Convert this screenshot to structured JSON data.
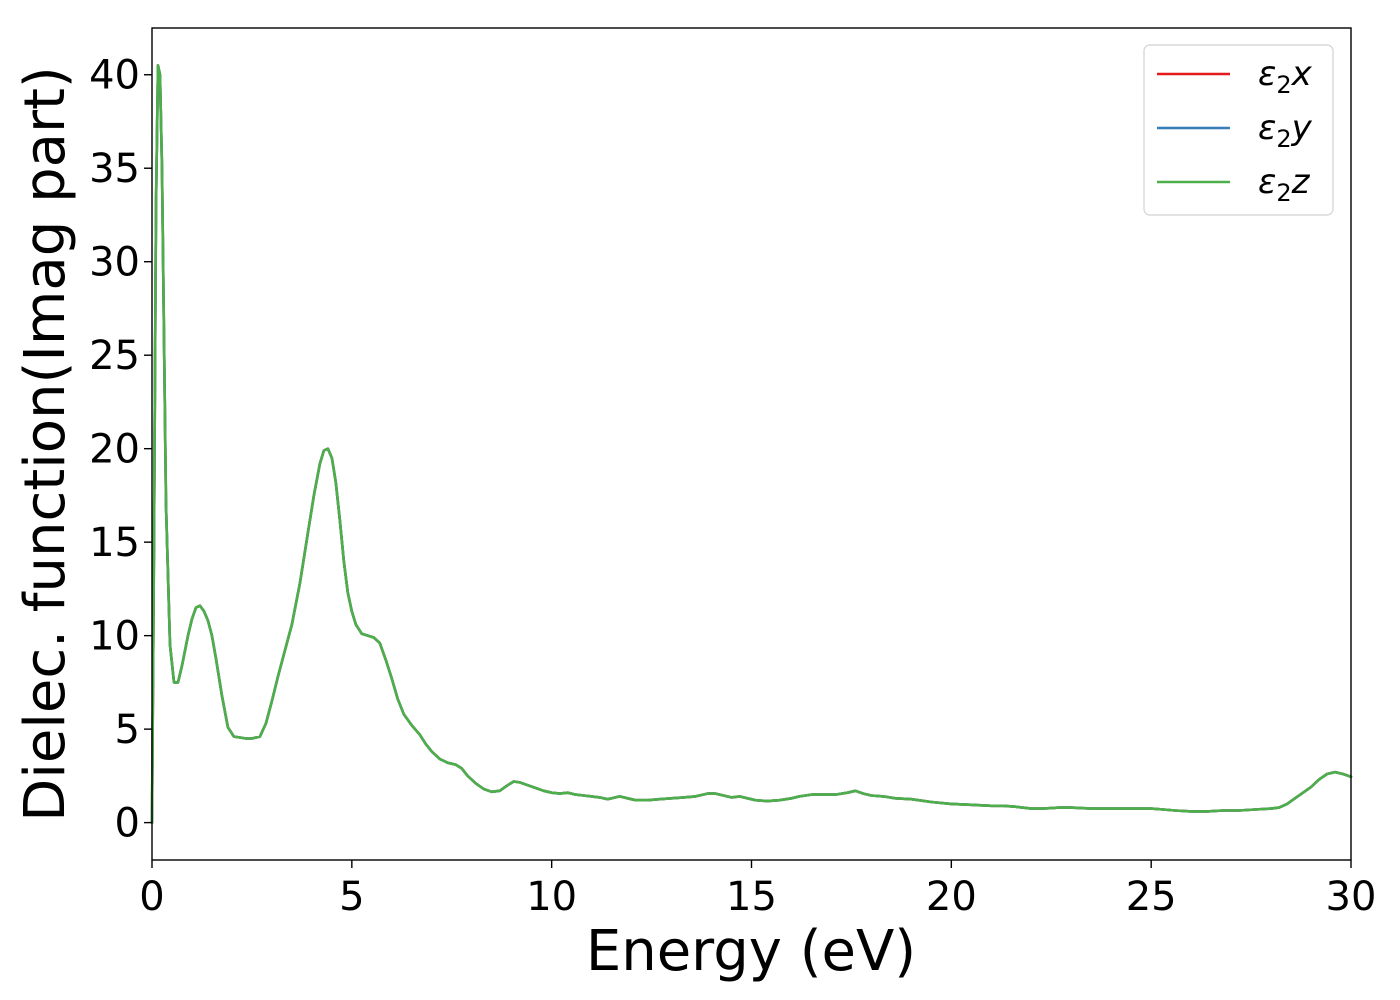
{
  "chart_data": {
    "type": "line",
    "title": "",
    "xlabel": "Energy (eV)",
    "ylabel": "Dielec. function(Imag part)",
    "xlim": [
      0,
      30
    ],
    "ylim": [
      -2,
      42.5
    ],
    "xticks": [
      0,
      5,
      10,
      15,
      20,
      25,
      30
    ],
    "yticks": [
      0,
      5,
      10,
      15,
      20,
      25,
      30,
      35,
      40
    ],
    "grid": false,
    "legend_position": "top-right",
    "series": [
      {
        "name": "ε₂x",
        "legend_base": "ε",
        "legend_sub": "2",
        "legend_axis": "x",
        "color": "#e41a1c",
        "x": [
          0,
          0.05,
          0.1,
          0.15,
          0.2,
          0.25,
          0.3,
          0.35,
          0.45,
          0.55,
          0.65,
          0.75,
          0.9,
          1.0,
          1.1,
          1.2,
          1.3,
          1.4,
          1.5,
          1.6,
          1.75,
          1.9,
          2.05,
          2.2,
          2.35,
          2.5,
          2.7,
          2.85,
          3.0,
          3.15,
          3.3,
          3.5,
          3.7,
          3.9,
          4.05,
          4.2,
          4.3,
          4.4,
          4.5,
          4.6,
          4.7,
          4.8,
          4.9,
          5.0,
          5.1,
          5.25,
          5.4,
          5.55,
          5.7,
          5.85,
          6.0,
          6.15,
          6.3,
          6.5,
          6.7,
          6.85,
          7.0,
          7.2,
          7.4,
          7.6,
          7.75,
          7.9,
          8.1,
          8.3,
          8.5,
          8.7,
          8.9,
          9.05,
          9.2,
          9.4,
          9.6,
          9.8,
          10.0,
          10.2,
          10.4,
          10.6,
          10.8,
          11.0,
          11.2,
          11.4,
          11.6,
          11.7,
          11.9,
          12.1,
          12.4,
          12.7,
          13.0,
          13.3,
          13.6,
          13.9,
          14.1,
          14.3,
          14.5,
          14.7,
          14.9,
          15.1,
          15.4,
          15.7,
          16.0,
          16.2,
          16.5,
          16.8,
          17.1,
          17.4,
          17.6,
          17.8,
          18.0,
          18.3,
          18.6,
          19.0,
          19.5,
          20.0,
          20.5,
          21.0,
          21.3,
          21.6,
          22.0,
          22.3,
          22.7,
          23.0,
          23.5,
          24.0,
          24.5,
          25.0,
          25.3,
          25.6,
          26.0,
          26.4,
          26.8,
          27.2,
          27.6,
          28.0,
          28.2,
          28.4,
          28.6,
          28.8,
          29.0,
          29.2,
          29.4,
          29.6,
          29.8,
          30.0
        ],
        "y": [
          0,
          15,
          33,
          40.5,
          40,
          35,
          26,
          17,
          9.5,
          7.5,
          7.5,
          8.4,
          10,
          10.9,
          11.5,
          11.6,
          11.3,
          10.8,
          10.0,
          8.8,
          6.8,
          5.1,
          4.6,
          4.55,
          4.5,
          4.5,
          4.6,
          5.3,
          6.5,
          7.8,
          9.0,
          10.6,
          12.8,
          15.5,
          17.5,
          19.2,
          19.9,
          20.0,
          19.5,
          18.2,
          16.2,
          14.0,
          12.3,
          11.3,
          10.6,
          10.1,
          10.0,
          9.9,
          9.6,
          8.7,
          7.7,
          6.6,
          5.8,
          5.2,
          4.7,
          4.2,
          3.8,
          3.4,
          3.2,
          3.1,
          2.9,
          2.5,
          2.1,
          1.8,
          1.65,
          1.7,
          2.0,
          2.2,
          2.15,
          2.0,
          1.85,
          1.7,
          1.6,
          1.55,
          1.6,
          1.5,
          1.45,
          1.4,
          1.35,
          1.25,
          1.35,
          1.4,
          1.3,
          1.2,
          1.2,
          1.25,
          1.3,
          1.35,
          1.4,
          1.55,
          1.55,
          1.45,
          1.35,
          1.4,
          1.3,
          1.2,
          1.15,
          1.2,
          1.3,
          1.4,
          1.5,
          1.5,
          1.5,
          1.6,
          1.7,
          1.55,
          1.45,
          1.4,
          1.3,
          1.25,
          1.1,
          1.0,
          0.95,
          0.9,
          0.9,
          0.85,
          0.75,
          0.75,
          0.8,
          0.8,
          0.75,
          0.75,
          0.75,
          0.75,
          0.7,
          0.65,
          0.6,
          0.6,
          0.65,
          0.65,
          0.7,
          0.75,
          0.8,
          1.0,
          1.3,
          1.6,
          1.9,
          2.3,
          2.6,
          2.7,
          2.6,
          2.45
        ]
      },
      {
        "name": "ε₂y",
        "legend_base": "ε",
        "legend_sub": "2",
        "legend_axis": "y",
        "color": "#377eb8",
        "same_as": 0
      },
      {
        "name": "ε₂z",
        "legend_base": "ε",
        "legend_sub": "2",
        "legend_axis": "z",
        "color": "#4daf4a",
        "same_as": 0
      }
    ]
  }
}
